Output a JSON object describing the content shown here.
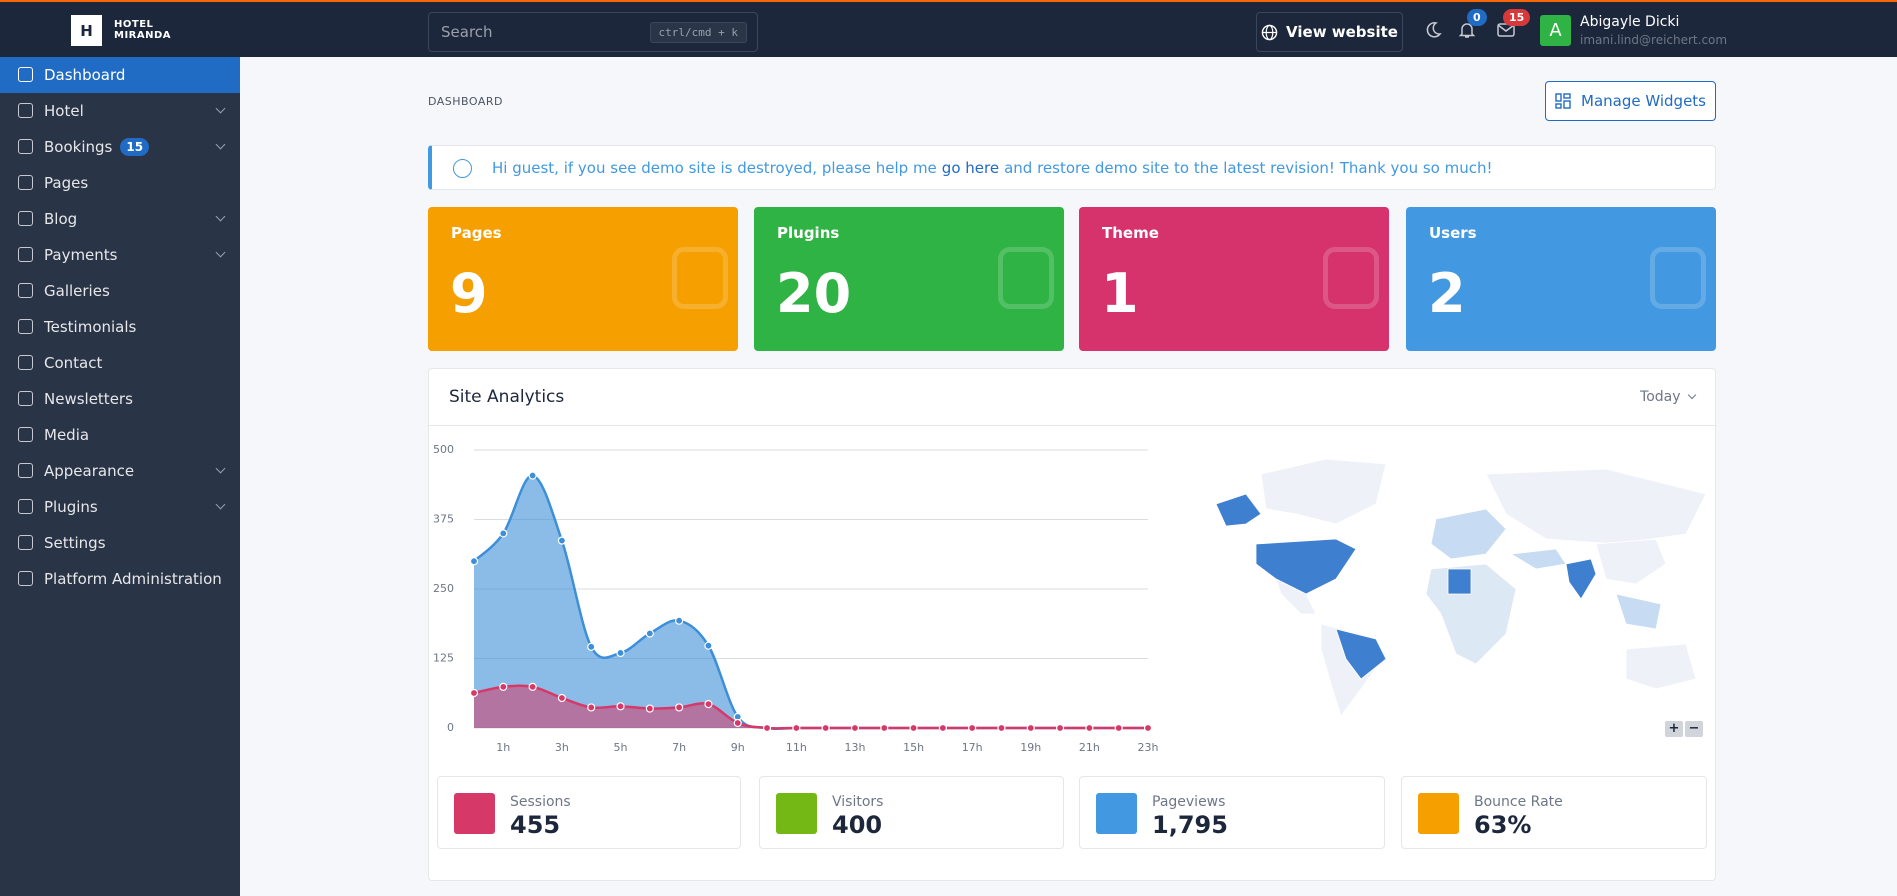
{
  "brand": {
    "logo": "H",
    "line1": "HOTEL",
    "line2": "MIRANDA"
  },
  "search": {
    "placeholder": "Search",
    "shortcut": "ctrl/cmd + k"
  },
  "topbar": {
    "view_website": "View website",
    "notifications": 0,
    "messages": 15,
    "user": {
      "initial": "A",
      "name": "Abigayle Dicki",
      "email": "imani.lind@reichert.com"
    }
  },
  "sidebar": {
    "items": [
      {
        "label": "Dashboard",
        "active": true
      },
      {
        "label": "Hotel",
        "expandable": true
      },
      {
        "label": "Bookings",
        "badge": 15,
        "expandable": true
      },
      {
        "label": "Pages"
      },
      {
        "label": "Blog",
        "expandable": true
      },
      {
        "label": "Payments",
        "expandable": true
      },
      {
        "label": "Galleries"
      },
      {
        "label": "Testimonials"
      },
      {
        "label": "Contact"
      },
      {
        "label": "Newsletters"
      },
      {
        "label": "Media"
      },
      {
        "label": "Appearance",
        "expandable": true
      },
      {
        "label": "Plugins",
        "expandable": true
      },
      {
        "label": "Settings"
      },
      {
        "label": "Platform Administration"
      }
    ]
  },
  "breadcrumb": "DASHBOARD",
  "manage_widgets": "Manage Widgets",
  "alert": {
    "before": "Hi guest, if you see demo site is destroyed, please help me",
    "link": "go here",
    "after": "and restore demo site to the latest revision! Thank you so much!"
  },
  "stat_cards": [
    {
      "label": "Pages",
      "value": 9
    },
    {
      "label": "Plugins",
      "value": 20
    },
    {
      "label": "Theme",
      "value": 1
    },
    {
      "label": "Users",
      "value": 2
    }
  ],
  "analytics": {
    "title": "Site Analytics",
    "period": "Today",
    "chart_data": {
      "type": "area",
      "categories": [
        null,
        "1h",
        null,
        "3h",
        null,
        "5h",
        null,
        "7h",
        null,
        "9h",
        null,
        "11h",
        null,
        "13h",
        null,
        "15h",
        null,
        "17h",
        null,
        "19h",
        null,
        "21h",
        null,
        "23h"
      ],
      "series": [
        {
          "color": "#3d8fd9",
          "values": [
            300,
            350,
            454,
            337,
            146,
            135,
            170,
            193,
            148,
            20,
            0,
            0,
            0,
            0,
            0,
            0,
            0,
            0,
            0,
            0,
            0,
            0,
            0,
            0
          ]
        },
        {
          "color": "#d63868",
          "values": [
            63,
            74,
            74,
            54,
            37,
            39,
            35,
            37,
            43,
            9,
            0,
            0,
            0,
            0,
            0,
            0,
            0,
            0,
            0,
            0,
            0,
            0,
            0,
            0
          ]
        }
      ],
      "ylim": [
        0,
        500
      ],
      "yticks": [
        0,
        125,
        250,
        375,
        500
      ],
      "grid": true
    },
    "summary": [
      {
        "label": "Sessions",
        "value": "455"
      },
      {
        "label": "Visitors",
        "value": "400"
      },
      {
        "label": "Pageviews",
        "value": "1,795"
      },
      {
        "label": "Bounce Rate",
        "value": "63%"
      }
    ]
  }
}
